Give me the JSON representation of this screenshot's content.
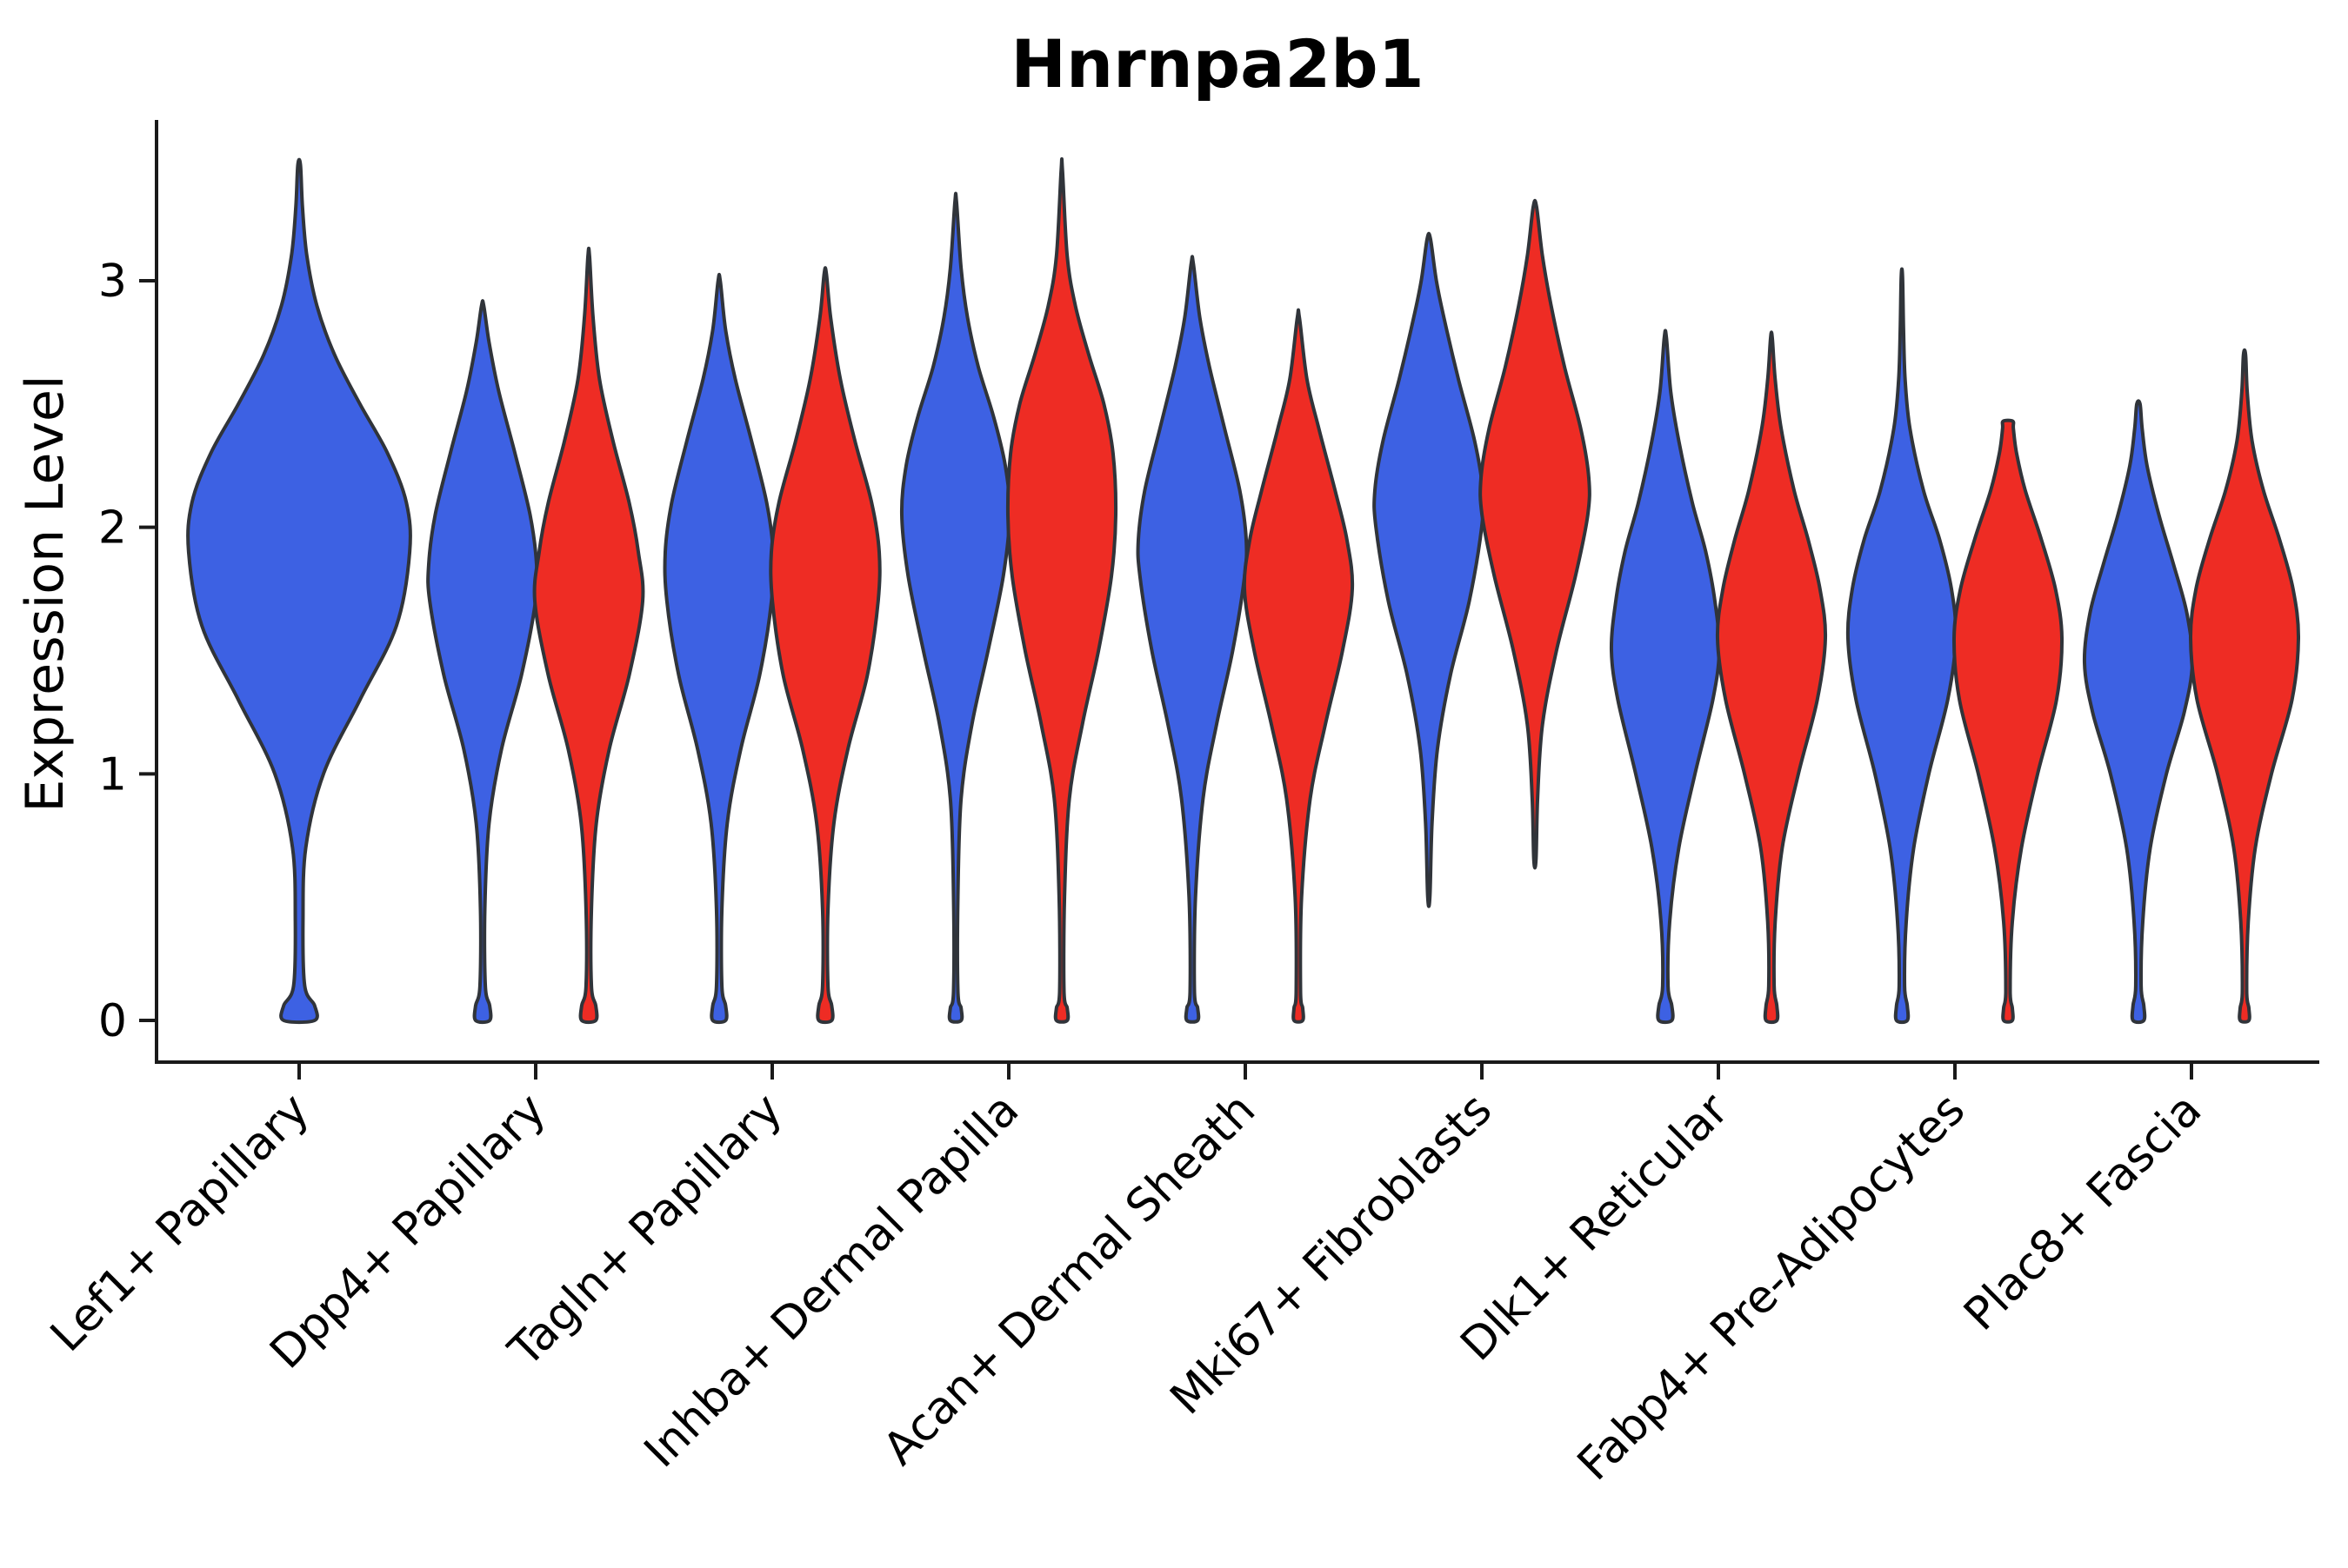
{
  "chart_data": {
    "type": "violin",
    "title": "Hnrnpa2b1",
    "ylabel": "Expression Level",
    "xlabel": "",
    "ylim": [
      -0.15,
      3.65
    ],
    "yticks": [
      0,
      1,
      2,
      3
    ],
    "grid": false,
    "legend": null,
    "colors": {
      "blue": "#3D61E3",
      "red": "#EE2C24",
      "outline": "#30343A",
      "background": "#ffffff"
    },
    "categories": [
      "Lef1+ Papillary",
      "Dpp4+ Papillary",
      "Tagln+ Papillary",
      "Inhba+ Dermal Papilla",
      "Acan+ Dermal Sheath",
      "Mki67+ Fibroblasts",
      "Dlk1+ Reticular",
      "Fabp4+ Pre-Adipocytes",
      "Plac8+ Fascia"
    ],
    "violins": [
      {
        "category": "Lef1+ Papillary",
        "group": "blue",
        "position": "center",
        "width_scale": 2.05,
        "min": 0,
        "max": 3.47,
        "mode": 1.9,
        "profile": [
          [
            0,
            0.14
          ],
          [
            0.06,
            0.14
          ],
          [
            0.14,
            0.05
          ],
          [
            0.4,
            0.035
          ],
          [
            0.7,
            0.06
          ],
          [
            1.0,
            0.22
          ],
          [
            1.3,
            0.55
          ],
          [
            1.6,
            0.88
          ],
          [
            1.9,
            1.0
          ],
          [
            2.1,
            0.97
          ],
          [
            2.3,
            0.8
          ],
          [
            2.5,
            0.55
          ],
          [
            2.7,
            0.32
          ],
          [
            2.9,
            0.16
          ],
          [
            3.1,
            0.07
          ],
          [
            3.3,
            0.03
          ],
          [
            3.47,
            0.012
          ]
        ]
      },
      {
        "category": "Dpp4+ Papillary",
        "group": "blue",
        "position": "left",
        "width_scale": 1.0,
        "min": 0,
        "max": 2.9,
        "mode": 1.8,
        "profile": [
          [
            0,
            0.13
          ],
          [
            0.06,
            0.13
          ],
          [
            0.14,
            0.05
          ],
          [
            0.45,
            0.04
          ],
          [
            0.8,
            0.12
          ],
          [
            1.1,
            0.35
          ],
          [
            1.4,
            0.72
          ],
          [
            1.7,
            0.98
          ],
          [
            1.85,
            1.0
          ],
          [
            2.05,
            0.88
          ],
          [
            2.3,
            0.6
          ],
          [
            2.55,
            0.3
          ],
          [
            2.75,
            0.12
          ],
          [
            2.9,
            0.02
          ]
        ]
      },
      {
        "category": "Dpp4+ Papillary",
        "group": "red",
        "position": "right",
        "width_scale": 1.0,
        "min": 0,
        "max": 3.1,
        "mode": 1.75,
        "profile": [
          [
            0,
            0.13
          ],
          [
            0.06,
            0.13
          ],
          [
            0.14,
            0.05
          ],
          [
            0.45,
            0.05
          ],
          [
            0.8,
            0.14
          ],
          [
            1.1,
            0.38
          ],
          [
            1.4,
            0.75
          ],
          [
            1.7,
            1.0
          ],
          [
            1.9,
            0.92
          ],
          [
            2.1,
            0.75
          ],
          [
            2.35,
            0.45
          ],
          [
            2.6,
            0.2
          ],
          [
            2.85,
            0.08
          ],
          [
            3.1,
            0.015
          ]
        ]
      },
      {
        "category": "Tagln+ Papillary",
        "group": "blue",
        "position": "left",
        "width_scale": 1.0,
        "min": 0,
        "max": 3.0,
        "mode": 1.85,
        "profile": [
          [
            0,
            0.12
          ],
          [
            0.06,
            0.12
          ],
          [
            0.14,
            0.05
          ],
          [
            0.45,
            0.05
          ],
          [
            0.8,
            0.15
          ],
          [
            1.1,
            0.4
          ],
          [
            1.4,
            0.75
          ],
          [
            1.7,
            0.97
          ],
          [
            1.9,
            1.0
          ],
          [
            2.1,
            0.88
          ],
          [
            2.35,
            0.6
          ],
          [
            2.6,
            0.3
          ],
          [
            2.8,
            0.12
          ],
          [
            3.0,
            0.02
          ]
        ]
      },
      {
        "category": "Tagln+ Papillary",
        "group": "red",
        "position": "right",
        "width_scale": 1.0,
        "min": 0,
        "max": 3.03,
        "mode": 1.85,
        "profile": [
          [
            0,
            0.12
          ],
          [
            0.06,
            0.12
          ],
          [
            0.14,
            0.05
          ],
          [
            0.45,
            0.05
          ],
          [
            0.8,
            0.16
          ],
          [
            1.1,
            0.42
          ],
          [
            1.4,
            0.78
          ],
          [
            1.7,
            0.98
          ],
          [
            1.9,
            1.0
          ],
          [
            2.1,
            0.86
          ],
          [
            2.35,
            0.55
          ],
          [
            2.6,
            0.28
          ],
          [
            2.85,
            0.1
          ],
          [
            3.03,
            0.02
          ]
        ]
      },
      {
        "category": "Inhba+ Dermal Papilla",
        "group": "blue",
        "position": "left",
        "width_scale": 1.0,
        "min": 0,
        "max": 3.32,
        "mode": 2.1,
        "profile": [
          [
            0,
            0.1
          ],
          [
            0.05,
            0.1
          ],
          [
            0.12,
            0.04
          ],
          [
            0.5,
            0.04
          ],
          [
            0.9,
            0.1
          ],
          [
            1.2,
            0.3
          ],
          [
            1.5,
            0.6
          ],
          [
            1.8,
            0.88
          ],
          [
            2.05,
            1.0
          ],
          [
            2.25,
            0.92
          ],
          [
            2.45,
            0.7
          ],
          [
            2.65,
            0.42
          ],
          [
            2.85,
            0.22
          ],
          [
            3.05,
            0.1
          ],
          [
            3.32,
            0.015
          ]
        ]
      },
      {
        "category": "Inhba+ Dermal Papilla",
        "group": "red",
        "position": "right",
        "width_scale": 1.0,
        "min": 0,
        "max": 3.45,
        "mode": 2.1,
        "profile": [
          [
            0,
            0.1
          ],
          [
            0.05,
            0.1
          ],
          [
            0.12,
            0.04
          ],
          [
            0.5,
            0.05
          ],
          [
            0.9,
            0.14
          ],
          [
            1.2,
            0.38
          ],
          [
            1.5,
            0.68
          ],
          [
            1.8,
            0.92
          ],
          [
            2.05,
            1.0
          ],
          [
            2.3,
            0.95
          ],
          [
            2.5,
            0.78
          ],
          [
            2.7,
            0.5
          ],
          [
            2.9,
            0.25
          ],
          [
            3.1,
            0.1
          ],
          [
            3.45,
            0.012
          ]
        ]
      },
      {
        "category": "Acan+ Dermal Sheath",
        "group": "blue",
        "position": "left",
        "width_scale": 1.0,
        "min": 0,
        "max": 3.07,
        "mode": 1.9,
        "profile": [
          [
            0,
            0.1
          ],
          [
            0.05,
            0.1
          ],
          [
            0.12,
            0.04
          ],
          [
            0.5,
            0.06
          ],
          [
            0.9,
            0.2
          ],
          [
            1.2,
            0.45
          ],
          [
            1.5,
            0.75
          ],
          [
            1.8,
            0.97
          ],
          [
            1.95,
            1.0
          ],
          [
            2.15,
            0.88
          ],
          [
            2.4,
            0.6
          ],
          [
            2.65,
            0.32
          ],
          [
            2.85,
            0.14
          ],
          [
            3.07,
            0.02
          ]
        ]
      },
      {
        "category": "Acan+ Dermal Sheath",
        "group": "red",
        "position": "right",
        "width_scale": 1.0,
        "min": 0,
        "max": 2.85,
        "mode": 1.8,
        "profile": [
          [
            0,
            0.08
          ],
          [
            0.05,
            0.08
          ],
          [
            0.12,
            0.04
          ],
          [
            0.5,
            0.06
          ],
          [
            0.9,
            0.22
          ],
          [
            1.2,
            0.5
          ],
          [
            1.5,
            0.82
          ],
          [
            1.75,
            1.0
          ],
          [
            1.95,
            0.9
          ],
          [
            2.15,
            0.68
          ],
          [
            2.4,
            0.38
          ],
          [
            2.6,
            0.16
          ],
          [
            2.85,
            0.02
          ]
        ]
      },
      {
        "category": "Mki67+ Fibroblasts",
        "group": "blue",
        "position": "left",
        "width_scale": 1.0,
        "min": 0.5,
        "max": 3.17,
        "mode": 2.1,
        "profile": [
          [
            0.5,
            0.02
          ],
          [
            0.8,
            0.06
          ],
          [
            1.1,
            0.16
          ],
          [
            1.4,
            0.4
          ],
          [
            1.7,
            0.75
          ],
          [
            2.0,
            0.98
          ],
          [
            2.15,
            1.0
          ],
          [
            2.35,
            0.85
          ],
          [
            2.6,
            0.55
          ],
          [
            2.85,
            0.28
          ],
          [
            3.0,
            0.14
          ],
          [
            3.17,
            0.03
          ]
        ]
      },
      {
        "category": "Mki67+ Fibroblasts",
        "group": "red",
        "position": "right",
        "width_scale": 1.0,
        "min": 0.65,
        "max": 3.3,
        "mode": 2.15,
        "profile": [
          [
            0.65,
            0.02
          ],
          [
            0.9,
            0.05
          ],
          [
            1.2,
            0.14
          ],
          [
            1.5,
            0.4
          ],
          [
            1.8,
            0.75
          ],
          [
            2.05,
            0.98
          ],
          [
            2.2,
            1.0
          ],
          [
            2.4,
            0.85
          ],
          [
            2.65,
            0.55
          ],
          [
            2.9,
            0.3
          ],
          [
            3.1,
            0.14
          ],
          [
            3.3,
            0.03
          ]
        ]
      },
      {
        "category": "Dlk1+ Reticular",
        "group": "blue",
        "position": "left",
        "width_scale": 1.0,
        "min": 0,
        "max": 2.77,
        "mode": 1.5,
        "profile": [
          [
            0,
            0.12
          ],
          [
            0.06,
            0.12
          ],
          [
            0.14,
            0.05
          ],
          [
            0.4,
            0.08
          ],
          [
            0.7,
            0.25
          ],
          [
            1.0,
            0.55
          ],
          [
            1.3,
            0.88
          ],
          [
            1.5,
            1.0
          ],
          [
            1.7,
            0.92
          ],
          [
            1.9,
            0.75
          ],
          [
            2.1,
            0.5
          ],
          [
            2.35,
            0.25
          ],
          [
            2.55,
            0.1
          ],
          [
            2.77,
            0.02
          ]
        ]
      },
      {
        "category": "Dlk1+ Reticular",
        "group": "red",
        "position": "right",
        "width_scale": 1.0,
        "min": 0,
        "max": 2.77,
        "mode": 1.6,
        "profile": [
          [
            0,
            0.1
          ],
          [
            0.06,
            0.1
          ],
          [
            0.14,
            0.05
          ],
          [
            0.4,
            0.07
          ],
          [
            0.7,
            0.2
          ],
          [
            1.0,
            0.5
          ],
          [
            1.3,
            0.85
          ],
          [
            1.55,
            1.0
          ],
          [
            1.75,
            0.9
          ],
          [
            1.95,
            0.68
          ],
          [
            2.15,
            0.42
          ],
          [
            2.4,
            0.18
          ],
          [
            2.6,
            0.07
          ],
          [
            2.77,
            0.015
          ]
        ]
      },
      {
        "category": "Fabp4+ Pre-Adipocytes",
        "group": "blue",
        "position": "left",
        "width_scale": 1.0,
        "min": 0,
        "max": 3.02,
        "mode": 1.6,
        "profile": [
          [
            0,
            0.1
          ],
          [
            0.06,
            0.1
          ],
          [
            0.14,
            0.05
          ],
          [
            0.4,
            0.08
          ],
          [
            0.7,
            0.22
          ],
          [
            1.0,
            0.5
          ],
          [
            1.3,
            0.85
          ],
          [
            1.55,
            1.0
          ],
          [
            1.75,
            0.92
          ],
          [
            1.95,
            0.7
          ],
          [
            2.15,
            0.4
          ],
          [
            2.4,
            0.15
          ],
          [
            2.6,
            0.06
          ],
          [
            2.8,
            0.03
          ],
          [
            3.02,
            0.012
          ]
        ]
      },
      {
        "category": "Fabp4+ Pre-Adipocytes",
        "group": "red",
        "position": "right",
        "width_scale": 1.0,
        "min": 0,
        "max": 2.43,
        "mode": 1.55,
        "profile": [
          [
            0,
            0.08
          ],
          [
            0.05,
            0.08
          ],
          [
            0.12,
            0.04
          ],
          [
            0.4,
            0.08
          ],
          [
            0.7,
            0.25
          ],
          [
            1.0,
            0.55
          ],
          [
            1.3,
            0.9
          ],
          [
            1.55,
            1.0
          ],
          [
            1.75,
            0.88
          ],
          [
            1.95,
            0.62
          ],
          [
            2.15,
            0.32
          ],
          [
            2.3,
            0.16
          ],
          [
            2.4,
            0.1
          ],
          [
            2.43,
            0.09
          ]
        ]
      },
      {
        "category": "Plac8+ Fascia",
        "group": "blue",
        "position": "left",
        "width_scale": 1.0,
        "min": 0,
        "max": 2.5,
        "mode": 1.5,
        "profile": [
          [
            0,
            0.1
          ],
          [
            0.06,
            0.1
          ],
          [
            0.14,
            0.05
          ],
          [
            0.4,
            0.08
          ],
          [
            0.7,
            0.22
          ],
          [
            1.0,
            0.52
          ],
          [
            1.25,
            0.85
          ],
          [
            1.45,
            1.0
          ],
          [
            1.65,
            0.9
          ],
          [
            1.85,
            0.65
          ],
          [
            2.05,
            0.38
          ],
          [
            2.25,
            0.16
          ],
          [
            2.4,
            0.07
          ],
          [
            2.5,
            0.03
          ]
        ]
      },
      {
        "category": "Plac8+ Fascia",
        "group": "red",
        "position": "right",
        "width_scale": 1.0,
        "min": 0,
        "max": 2.7,
        "mode": 1.55,
        "profile": [
          [
            0,
            0.08
          ],
          [
            0.05,
            0.08
          ],
          [
            0.12,
            0.04
          ],
          [
            0.4,
            0.07
          ],
          [
            0.7,
            0.2
          ],
          [
            1.0,
            0.5
          ],
          [
            1.3,
            0.88
          ],
          [
            1.55,
            1.0
          ],
          [
            1.75,
            0.9
          ],
          [
            1.95,
            0.65
          ],
          [
            2.15,
            0.35
          ],
          [
            2.35,
            0.14
          ],
          [
            2.55,
            0.05
          ],
          [
            2.7,
            0.02
          ]
        ]
      }
    ]
  }
}
